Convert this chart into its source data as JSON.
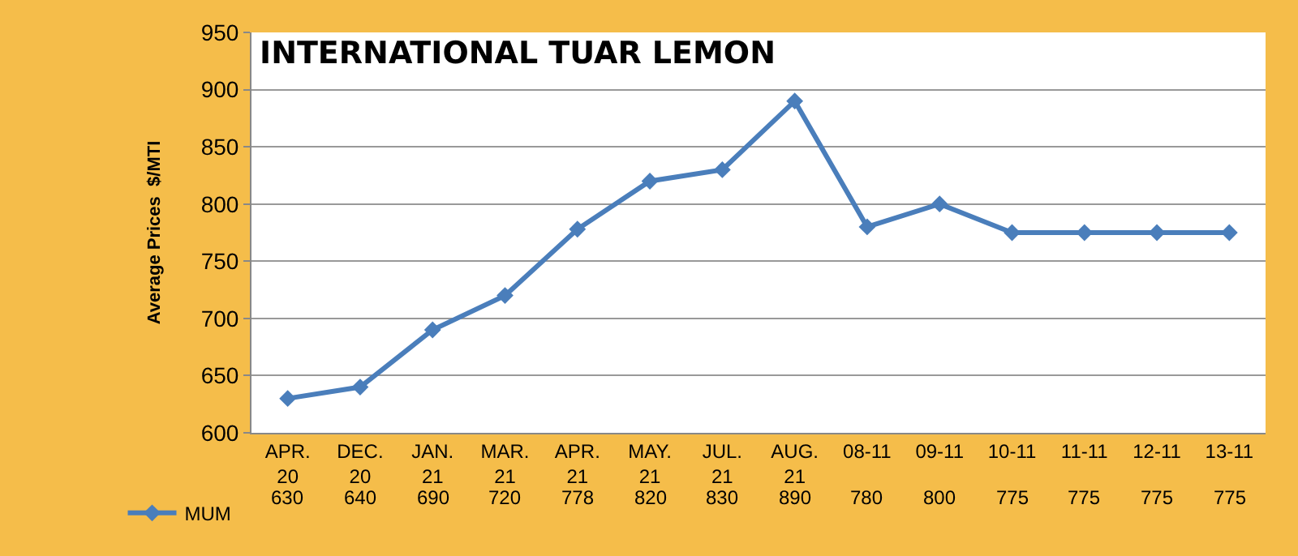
{
  "chart_data": {
    "type": "line",
    "title": "INTERNATIONAL TUAR LEMON",
    "ylabel": "Average Prices  $/MTI",
    "categories": [
      "APR. 20",
      "DEC. 20",
      "JAN. 21",
      "MAR. 21",
      "APR. 21",
      "MAY. 21",
      "JUL. 21",
      "AUG. 21",
      "08-11",
      "09-11",
      "10-11",
      "11-11",
      "12-11",
      "13-11"
    ],
    "series": [
      {
        "name": "MUM",
        "color": "#4a7ebb",
        "values": [
          630,
          640,
          690,
          720,
          778,
          820,
          830,
          890,
          780,
          800,
          775,
          775,
          775,
          775
        ]
      }
    ],
    "ylim": [
      600,
      950
    ],
    "yticks": [
      600,
      650,
      700,
      750,
      800,
      850,
      900,
      950
    ],
    "grid": "y",
    "legend": "bottom left",
    "marker": "diamond",
    "line_style": "solid",
    "data_labels": true
  }
}
